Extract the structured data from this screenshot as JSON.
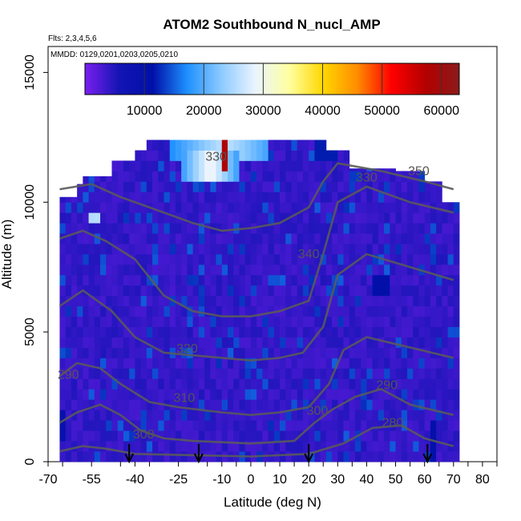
{
  "chart_data": {
    "type": "heatmap",
    "title": "ATOM2 Southbound N_nucl_AMP",
    "flights_note": "Flts: 2,3,4,5,6",
    "dates_note": "MMDD: 0129,0201,0203,0205,0210",
    "xlabel": "Latitude (deg N)",
    "ylabel": "Altitude (m)",
    "xlim": [
      -70,
      85
    ],
    "ylim": [
      0,
      16000
    ],
    "x_tick_labels": [
      "-70",
      "-55",
      "-40",
      "-25",
      "-10",
      "0",
      "10",
      "20",
      "30",
      "40",
      "50",
      "60",
      "70",
      "80"
    ],
    "x_tick_values": [
      -70,
      -55,
      -40,
      -25,
      -10,
      0,
      10,
      20,
      30,
      40,
      50,
      60,
      70,
      80
    ],
    "y_tick_labels": [
      "0",
      "5000",
      "10000",
      "15000"
    ],
    "y_tick_values": [
      0,
      5000,
      10000,
      15000
    ],
    "colorbar": {
      "min": 0,
      "max": 63000,
      "tick_labels": [
        "10000",
        "20000",
        "30000",
        "40000",
        "50000",
        "60000"
      ],
      "tick_values": [
        10000,
        20000,
        30000,
        40000,
        50000,
        60000
      ],
      "colors": [
        "#7b1fef",
        "#1414b4",
        "#0010a8",
        "#1e90ff",
        "#8ccaff",
        "#eaf4ff",
        "#ffffa0",
        "#ffd700",
        "#ff8c00",
        "#ff0000",
        "#b40000",
        "#8b1a1a"
      ]
    },
    "contour_labels": [
      {
        "text": "330",
        "lat": -12,
        "alt": 11600
      },
      {
        "text": "330",
        "lat": 40,
        "alt": 10800
      },
      {
        "text": "350",
        "lat": 58,
        "alt": 11050
      },
      {
        "text": "340",
        "lat": 20,
        "alt": 7850
      },
      {
        "text": "320",
        "lat": -22,
        "alt": 4200
      },
      {
        "text": "310",
        "lat": -23,
        "alt": 2300
      },
      {
        "text": "300",
        "lat": -37,
        "alt": 900
      },
      {
        "text": "300",
        "lat": 23,
        "alt": 1800
      },
      {
        "text": "290",
        "lat": -63,
        "alt": 3200
      },
      {
        "text": "290",
        "lat": 47,
        "alt": 2800
      },
      {
        "text": "280",
        "lat": 49,
        "alt": 1350
      }
    ],
    "flight_markers_lat": [
      -42,
      -18,
      20,
      61
    ]
  }
}
